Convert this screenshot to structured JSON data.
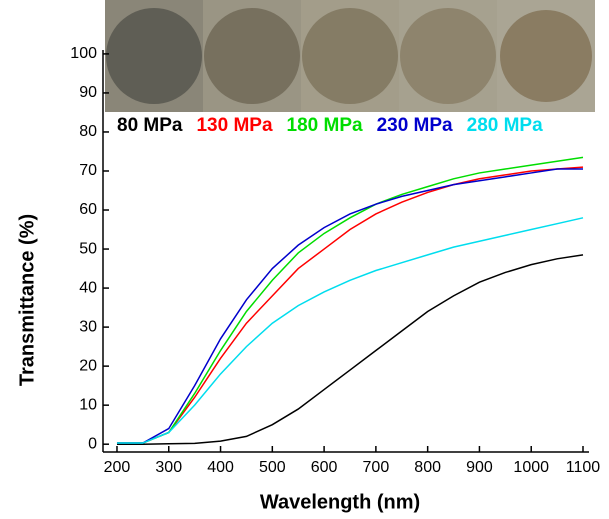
{
  "chart_data": {
    "type": "line",
    "x_label": "Wavelength (nm)",
    "y_label": "Transmittance (%)",
    "x": [
      200,
      250,
      300,
      350,
      400,
      450,
      500,
      550,
      600,
      650,
      700,
      750,
      800,
      850,
      900,
      950,
      1000,
      1050,
      1100
    ],
    "series": [
      {
        "name": "80 MPa",
        "color": "#000000",
        "values": [
          0,
          0,
          0.1,
          0.2,
          0.8,
          2,
          5,
          9,
          14,
          19,
          24,
          29,
          34,
          38,
          41.5,
          44,
          46,
          47.5,
          48.5
        ]
      },
      {
        "name": "130 MPa",
        "color": "#ff0000",
        "values": [
          0.3,
          0.3,
          3,
          12,
          22,
          31,
          38,
          45,
          50,
          55,
          59,
          62,
          64.5,
          66.5,
          68,
          69,
          70,
          70.5,
          71
        ]
      },
      {
        "name": "180 MPa",
        "color": "#00dd00",
        "values": [
          0.3,
          0.3,
          3,
          13,
          24,
          34,
          42,
          49,
          54,
          58,
          61.5,
          64,
          66,
          68,
          69.5,
          70.5,
          71.5,
          72.5,
          73.5
        ]
      },
      {
        "name": "230 MPa",
        "color": "#0000cc",
        "values": [
          0.3,
          0.3,
          4,
          15,
          27,
          37,
          45,
          51,
          55.5,
          59,
          61.5,
          63.5,
          65,
          66.5,
          67.5,
          68.5,
          69.5,
          70.5,
          70.5
        ]
      },
      {
        "name": "280 MPa",
        "color": "#00ddee",
        "values": [
          0.3,
          0.3,
          3,
          10,
          18,
          25,
          31,
          35.5,
          39,
          42,
          44.5,
          46.5,
          48.5,
          50.5,
          52,
          53.5,
          55,
          56.5,
          58
        ]
      }
    ],
    "xlim": [
      173,
      1100
    ],
    "ylim": [
      -2,
      101
    ],
    "xticks": [
      200,
      300,
      400,
      500,
      600,
      700,
      800,
      900,
      1000,
      1100
    ],
    "yticks": [
      0,
      10,
      20,
      30,
      40,
      50,
      60,
      70,
      80,
      90,
      100
    ]
  }
}
